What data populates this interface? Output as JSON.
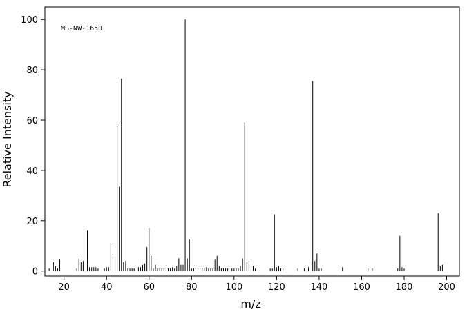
{
  "chart_data": {
    "type": "stem",
    "annotation": "MS-NW-1650",
    "xlabel": "m/z",
    "ylabel": "Relative Intensity",
    "color": "#000000",
    "xlim": [
      11,
      206
    ],
    "xticks": [
      20,
      40,
      60,
      80,
      100,
      120,
      140,
      160,
      180,
      200
    ],
    "ylim": [
      -2,
      105
    ],
    "yticks": [
      0,
      20,
      40,
      60,
      80,
      100
    ],
    "x": [
      13,
      15,
      16,
      17,
      18,
      26,
      27,
      28,
      29,
      31,
      32,
      33,
      34,
      35,
      36,
      39,
      40,
      41,
      42,
      43,
      44,
      45,
      46,
      47,
      48,
      49,
      50,
      51,
      52,
      53,
      55,
      56,
      57,
      58,
      59,
      60,
      61,
      62,
      63,
      64,
      65,
      66,
      67,
      68,
      69,
      70,
      71,
      72,
      73,
      74,
      75,
      76,
      77,
      78,
      79,
      80,
      81,
      82,
      83,
      84,
      85,
      86,
      87,
      88,
      89,
      90,
      91,
      92,
      93,
      94,
      95,
      96,
      97,
      99,
      100,
      101,
      102,
      103,
      104,
      105,
      106,
      107,
      108,
      109,
      110,
      117,
      118,
      119,
      120,
      121,
      122,
      123,
      130,
      133,
      135,
      137,
      138,
      139,
      140,
      141,
      151,
      163,
      165,
      177,
      178,
      179,
      180,
      196,
      197,
      198
    ],
    "values": [
      1,
      3.5,
      2,
      1,
      4.5,
      1,
      5,
      3.5,
      4,
      16,
      1.5,
      1.5,
      1.5,
      1.5,
      1,
      1,
      1.5,
      1.5,
      11,
      5.5,
      6,
      57.5,
      33.5,
      76.5,
      3.5,
      4,
      1,
      1,
      1,
      1,
      1.5,
      1.5,
      2.5,
      3,
      9.5,
      17,
      6,
      1,
      2.5,
      1,
      1,
      1,
      1,
      1,
      1,
      1,
      1.5,
      1,
      2,
      5,
      2.5,
      2.5,
      100,
      5,
      12.5,
      1,
      1,
      1,
      1,
      1,
      1,
      1,
      1.5,
      1,
      1,
      1,
      4.5,
      6,
      2,
      1,
      1,
      1,
      1,
      1,
      1,
      1,
      1,
      2,
      5,
      59,
      3.5,
      4,
      1,
      2,
      1,
      1,
      1,
      22.5,
      1.5,
      2,
      1,
      1,
      1,
      1,
      1.5,
      75.5,
      4,
      7,
      1,
      1,
      1.5,
      1,
      1,
      1,
      14,
      1.5,
      1,
      23,
      2,
      2.5
    ]
  }
}
